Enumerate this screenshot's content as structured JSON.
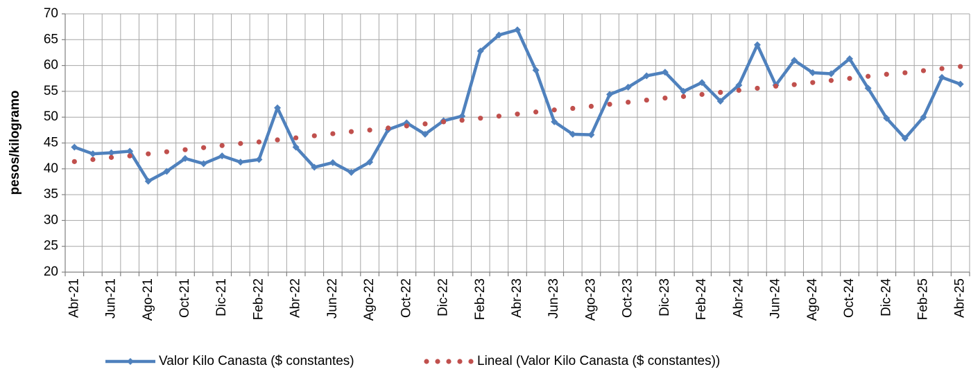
{
  "chart_data": {
    "type": "line",
    "y_label": "pesos/kilogramo",
    "categories": [
      "Abr-21",
      null,
      "Jun-21",
      null,
      "Ago-21",
      null,
      "Oct-21",
      null,
      "Dic-21",
      null,
      "Feb-22",
      null,
      "Abr-22",
      null,
      "Jun-22",
      null,
      "Ago-22",
      null,
      "Oct-22",
      null,
      "Dic-22",
      null,
      "Feb-23",
      null,
      "Abr-23",
      null,
      "Jun-23",
      null,
      "Ago-23",
      null,
      "Oct-23",
      null,
      "Dic-23",
      null,
      "Feb-24",
      null,
      "Abr-24",
      null,
      "Jun-24",
      null,
      "Ago-24",
      null,
      "Oct-24",
      null,
      "Dic-24",
      null,
      "Feb-25",
      null,
      "Abr-25"
    ],
    "series": [
      {
        "name": "Valor Kilo Canasta ($ constantes)",
        "color": "#4f81bd",
        "marker": "diamond",
        "line": "solid",
        "values": [
          44.2,
          42.9,
          43.1,
          43.4,
          37.6,
          39.5,
          42.0,
          41.0,
          42.5,
          41.3,
          41.8,
          51.8,
          44.2,
          40.3,
          41.2,
          39.3,
          41.3,
          47.6,
          48.9,
          46.7,
          49.3,
          50.2,
          62.8,
          65.9,
          66.9,
          59.1,
          49.1,
          46.7,
          46.6,
          54.4,
          55.8,
          58.0,
          58.7,
          55.0,
          56.7,
          53.1,
          56.2,
          64.0,
          56.2,
          61.0,
          58.6,
          58.4,
          61.3,
          55.6,
          49.8,
          45.9,
          50.0,
          57.7,
          56.4
        ]
      },
      {
        "name": "Lineal (Valor Kilo Canasta ($ constantes))",
        "color": "#c0504d",
        "marker": "dot",
        "line": "none",
        "values": [
          41.4,
          41.8,
          42.2,
          42.5,
          42.9,
          43.3,
          43.7,
          44.1,
          44.5,
          44.9,
          45.2,
          45.6,
          46.0,
          46.4,
          46.8,
          47.2,
          47.5,
          47.9,
          48.3,
          48.7,
          49.1,
          49.4,
          49.8,
          50.2,
          50.6,
          51.0,
          51.4,
          51.7,
          52.1,
          52.5,
          52.9,
          53.3,
          53.7,
          54.0,
          54.4,
          54.8,
          55.2,
          55.6,
          56.0,
          56.3,
          56.7,
          57.1,
          57.5,
          57.9,
          58.3,
          58.6,
          59.0,
          59.4,
          59.8
        ]
      }
    ],
    "ylim": [
      20,
      70
    ],
    "yticks": [
      20,
      25,
      30,
      35,
      40,
      45,
      50,
      55,
      60,
      65,
      70
    ],
    "grid": true,
    "legend": "bottom"
  }
}
